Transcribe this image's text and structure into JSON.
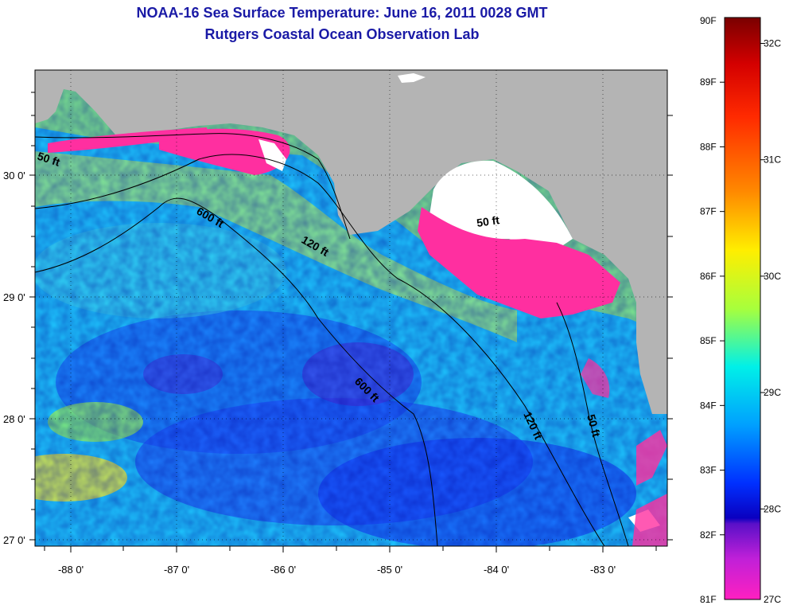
{
  "header": {
    "title": "NOAA-16 Sea Surface Temperature:  June 16, 2011 0028 GMT",
    "subtitle": "Rutgers Coastal Ocean Observation Lab"
  },
  "map": {
    "lon_labels": [
      "-88 0'",
      "-87 0'",
      "-86 0'",
      "-85 0'",
      "-84 0'",
      "-83 0'"
    ],
    "lat_labels": [
      "30 0'",
      "29 0'",
      "28 0'",
      "27 0'"
    ],
    "contour_labels": [
      "50 ft",
      "600 ft",
      "120 ft",
      "50 ft",
      "600 ft",
      "120 ft",
      "50 ft"
    ],
    "colors": {
      "land": "#b4b4b4",
      "cloud": "#ffffff",
      "cold": "#ff2fa0"
    }
  },
  "colorbar": {
    "fahrenheit": [
      "90F",
      "89F",
      "88F",
      "87F",
      "86F",
      "85F",
      "84F",
      "83F",
      "82F",
      "81F"
    ],
    "celsius": [
      "32C",
      "31C",
      "30C",
      "29C",
      "28C",
      "27C"
    ],
    "celsius_values": [
      32,
      31,
      30,
      29,
      28,
      27
    ]
  }
}
